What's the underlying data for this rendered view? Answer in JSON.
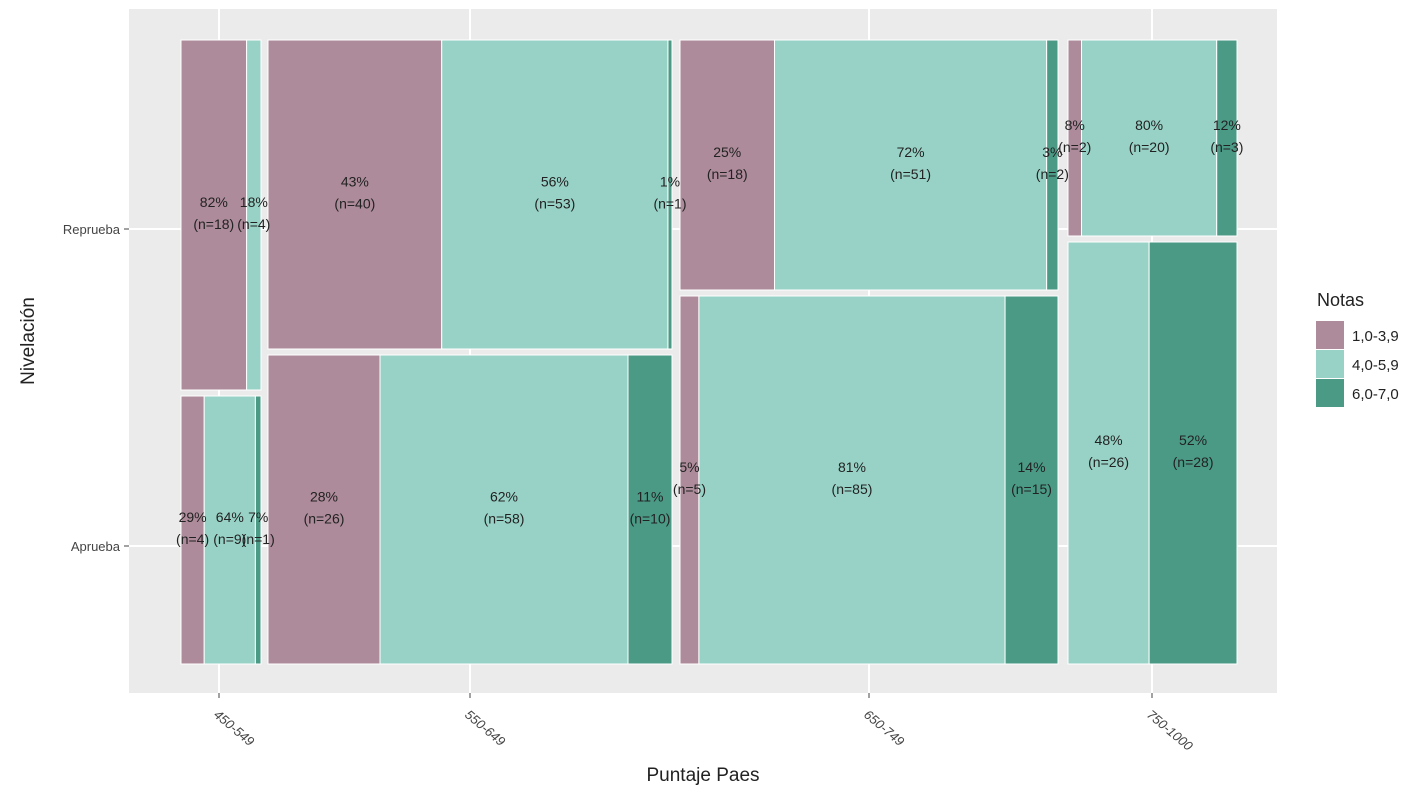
{
  "chart_data": {
    "type": "mosaic",
    "xlabel": "Puntaje Paes",
    "ylabel": "Nivelación",
    "x_categories": [
      "450-549",
      "550-649",
      "650-749",
      "750-1000"
    ],
    "y_categories": [
      "Aprueba",
      "Reprueba"
    ],
    "legend": {
      "title": "Notas",
      "position": "right",
      "items": [
        {
          "label": "1,0-3,9",
          "color": "#ad8b9a"
        },
        {
          "label": "4,0-5,9",
          "color": "#98d2c6"
        },
        {
          "label": "6,0-7,0",
          "color": "#4b9a86"
        }
      ]
    },
    "cells": [
      {
        "x": "450-549",
        "y": "Reprueba",
        "segments": [
          {
            "nota": "1,0-3,9",
            "pct": 82,
            "pct_label": "82%",
            "n_label": "(n=18)"
          },
          {
            "nota": "4,0-5,9",
            "pct": 18,
            "pct_label": "18%",
            "n_label": "(n=4)"
          }
        ]
      },
      {
        "x": "450-549",
        "y": "Aprueba",
        "segments": [
          {
            "nota": "1,0-3,9",
            "pct": 29,
            "pct_label": "29%",
            "n_label": "(n=4)"
          },
          {
            "nota": "4,0-5,9",
            "pct": 64,
            "pct_label": "64%",
            "n_label": "(n=9)"
          },
          {
            "nota": "6,0-7,0",
            "pct": 7,
            "pct_label": "7%",
            "n_label": "(n=1)"
          }
        ]
      },
      {
        "x": "550-649",
        "y": "Reprueba",
        "segments": [
          {
            "nota": "1,0-3,9",
            "pct": 43,
            "pct_label": "43%",
            "n_label": "(n=40)"
          },
          {
            "nota": "4,0-5,9",
            "pct": 56,
            "pct_label": "56%",
            "n_label": "(n=53)"
          },
          {
            "nota": "6,0-7,0",
            "pct": 1,
            "pct_label": "1%",
            "n_label": "(n=1)"
          }
        ]
      },
      {
        "x": "550-649",
        "y": "Aprueba",
        "segments": [
          {
            "nota": "1,0-3,9",
            "pct": 28,
            "pct_label": "28%",
            "n_label": "(n=26)"
          },
          {
            "nota": "4,0-5,9",
            "pct": 62,
            "pct_label": "62%",
            "n_label": "(n=58)"
          },
          {
            "nota": "6,0-7,0",
            "pct": 11,
            "pct_label": "11%",
            "n_label": "(n=10)"
          }
        ]
      },
      {
        "x": "650-749",
        "y": "Reprueba",
        "segments": [
          {
            "nota": "1,0-3,9",
            "pct": 25,
            "pct_label": "25%",
            "n_label": "(n=18)"
          },
          {
            "nota": "4,0-5,9",
            "pct": 72,
            "pct_label": "72%",
            "n_label": "(n=51)"
          },
          {
            "nota": "6,0-7,0",
            "pct": 3,
            "pct_label": "3%",
            "n_label": "(n=2)"
          }
        ]
      },
      {
        "x": "650-749",
        "y": "Aprueba",
        "segments": [
          {
            "nota": "1,0-3,9",
            "pct": 5,
            "pct_label": "5%",
            "n_label": "(n=5)"
          },
          {
            "nota": "4,0-5,9",
            "pct": 81,
            "pct_label": "81%",
            "n_label": "(n=85)"
          },
          {
            "nota": "6,0-7,0",
            "pct": 14,
            "pct_label": "14%",
            "n_label": "(n=15)"
          }
        ]
      },
      {
        "x": "750-1000",
        "y": "Reprueba",
        "segments": [
          {
            "nota": "1,0-3,9",
            "pct": 8,
            "pct_label": "8%",
            "n_label": "(n=2)"
          },
          {
            "nota": "4,0-5,9",
            "pct": 80,
            "pct_label": "80%",
            "n_label": "(n=20)"
          },
          {
            "nota": "6,0-7,0",
            "pct": 12,
            "pct_label": "12%",
            "n_label": "(n=3)"
          }
        ]
      },
      {
        "x": "750-1000",
        "y": "Aprueba",
        "segments": [
          {
            "nota": "4,0-5,9",
            "pct": 48,
            "pct_label": "48%",
            "n_label": "(n=26)"
          },
          {
            "nota": "6,0-7,0",
            "pct": 52,
            "pct_label": "52%",
            "n_label": "(n=28)"
          }
        ]
      }
    ]
  }
}
